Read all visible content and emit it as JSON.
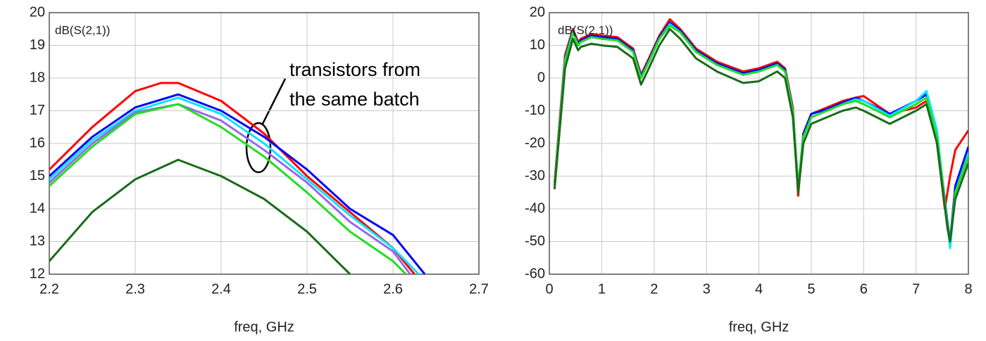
{
  "chart_data": [
    {
      "type": "line",
      "label": "dB(S(2,1))",
      "xlabel": "freq, GHz",
      "xlim": [
        2.2,
        2.7
      ],
      "ylim": [
        12,
        20
      ],
      "xticks": [
        2.2,
        2.3,
        2.4,
        2.5,
        2.6,
        2.7
      ],
      "yticks": [
        12,
        13,
        14,
        15,
        16,
        17,
        18,
        19,
        20
      ],
      "grid": true,
      "annotation": [
        "transistors from",
        "the same batch"
      ],
      "series": [
        {
          "color": "#ff0000",
          "x": [
            2.2,
            2.25,
            2.3,
            2.33,
            2.35,
            2.4,
            2.45,
            2.5,
            2.55,
            2.6,
            2.625
          ],
          "values": [
            15.2,
            16.5,
            17.6,
            17.85,
            17.85,
            17.3,
            16.3,
            15.0,
            13.9,
            12.8,
            12.0
          ]
        },
        {
          "color": "#0000ff",
          "x": [
            2.2,
            2.25,
            2.3,
            2.35,
            2.4,
            2.45,
            2.5,
            2.55,
            2.6,
            2.637
          ],
          "values": [
            15.0,
            16.2,
            17.1,
            17.5,
            17.0,
            16.2,
            15.2,
            14.0,
            13.2,
            12.0
          ]
        },
        {
          "color": "#00e5ff",
          "x": [
            2.2,
            2.25,
            2.3,
            2.35,
            2.4,
            2.45,
            2.5,
            2.55,
            2.6,
            2.63
          ],
          "values": [
            14.9,
            16.1,
            17.0,
            17.4,
            16.9,
            16.0,
            14.9,
            13.8,
            12.8,
            12.0
          ]
        },
        {
          "color": "#9966ee",
          "x": [
            2.2,
            2.25,
            2.3,
            2.35,
            2.4,
            2.45,
            2.5,
            2.55,
            2.6,
            2.62
          ],
          "values": [
            14.8,
            16.0,
            16.95,
            17.2,
            16.7,
            15.8,
            14.8,
            13.6,
            12.7,
            12.0
          ]
        },
        {
          "color": "#22dd22",
          "x": [
            2.2,
            2.25,
            2.3,
            2.35,
            2.4,
            2.45,
            2.5,
            2.55,
            2.6,
            2.615
          ],
          "values": [
            14.7,
            15.9,
            16.9,
            17.2,
            16.5,
            15.6,
            14.5,
            13.3,
            12.4,
            12.0
          ]
        },
        {
          "color": "#1a6b1a",
          "x": [
            2.2,
            2.25,
            2.3,
            2.35,
            2.4,
            2.45,
            2.5,
            2.55
          ],
          "values": [
            12.4,
            13.9,
            14.9,
            15.5,
            15.0,
            14.3,
            13.3,
            12.0
          ]
        }
      ]
    },
    {
      "type": "line",
      "label": "dB(S(2,1))",
      "xlabel": "freq, GHz",
      "xlim": [
        0,
        8
      ],
      "ylim": [
        -60,
        20
      ],
      "xticks": [
        0,
        1,
        2,
        3,
        4,
        5,
        6,
        7,
        8
      ],
      "yticks": [
        -60,
        -50,
        -40,
        -30,
        -20,
        -10,
        0,
        10,
        20
      ],
      "grid": true,
      "series": [
        {
          "color": "#ff0000",
          "x": [
            0.1,
            0.3,
            0.45,
            0.55,
            0.6,
            0.8,
            1.0,
            1.3,
            1.6,
            1.75,
            1.9,
            2.1,
            2.3,
            2.5,
            2.8,
            3.2,
            3.7,
            4.0,
            4.35,
            4.5,
            4.65,
            4.75,
            4.85,
            5.0,
            5.3,
            5.6,
            5.85,
            6.0,
            6.5,
            7.0,
            7.2,
            7.4,
            7.55,
            7.65,
            7.75,
            8.0
          ],
          "values": [
            -32,
            7,
            15,
            11,
            12,
            13.5,
            13,
            12.5,
            9,
            1,
            6,
            13,
            18,
            15,
            9,
            5,
            2,
            3,
            5,
            3,
            -9,
            -36,
            -17,
            -11,
            -9,
            -7,
            -6,
            -5.5,
            -11,
            -9,
            -7,
            -20,
            -40,
            -30,
            -22,
            -16
          ]
        },
        {
          "color": "#0000ff",
          "x": [
            0.1,
            0.3,
            0.45,
            0.55,
            0.6,
            0.8,
            1.0,
            1.3,
            1.6,
            1.75,
            1.9,
            2.1,
            2.3,
            2.5,
            2.8,
            3.2,
            3.7,
            4.0,
            4.35,
            4.5,
            4.65,
            4.75,
            4.85,
            5.0,
            5.3,
            5.6,
            5.85,
            6.0,
            6.5,
            7.0,
            7.2,
            7.4,
            7.6,
            7.65,
            7.75,
            8.0
          ],
          "values": [
            -33,
            6,
            14.5,
            10.5,
            11.5,
            13,
            12.5,
            12,
            8.5,
            0.5,
            5.5,
            12.5,
            17,
            14.5,
            8.5,
            4.5,
            1.5,
            2.5,
            4.5,
            2.5,
            -9.5,
            -34,
            -17,
            -11,
            -9.5,
            -7.5,
            -6,
            -7,
            -11,
            -7,
            -5,
            -17,
            -44,
            -50,
            -33,
            -21
          ]
        },
        {
          "color": "#00e5ff",
          "x": [
            0.1,
            0.3,
            0.45,
            0.55,
            0.6,
            0.8,
            1.0,
            1.3,
            1.6,
            1.75,
            1.9,
            2.1,
            2.3,
            2.5,
            2.8,
            3.2,
            3.7,
            4.0,
            4.35,
            4.5,
            4.65,
            4.75,
            4.85,
            5.0,
            5.3,
            5.6,
            5.85,
            6.0,
            6.5,
            7.0,
            7.2,
            7.4,
            7.6,
            7.65,
            7.75,
            8.0
          ],
          "values": [
            -33,
            5.5,
            14,
            10,
            11,
            12.5,
            12,
            11.5,
            8,
            0,
            5,
            12,
            16.5,
            14,
            8,
            4,
            1,
            2,
            4,
            2,
            -10,
            -33,
            -18,
            -12,
            -10,
            -8,
            -6.5,
            -7,
            -11.5,
            -7,
            -4,
            -16,
            -45,
            -52,
            -35,
            -23
          ]
        },
        {
          "color": "#22dd22",
          "x": [
            0.1,
            0.3,
            0.45,
            0.55,
            0.6,
            0.8,
            1.0,
            1.3,
            1.6,
            1.75,
            1.9,
            2.1,
            2.3,
            2.5,
            2.8,
            3.2,
            3.7,
            4.0,
            4.35,
            4.5,
            4.65,
            4.75,
            4.85,
            5.0,
            5.3,
            5.6,
            5.85,
            6.0,
            6.5,
            7.0,
            7.2,
            7.4,
            7.6,
            7.65,
            7.75,
            8.0
          ],
          "values": [
            -33,
            5,
            14,
            10,
            11,
            12.5,
            12,
            11.5,
            8,
            0,
            5,
            12,
            16,
            14,
            8,
            4,
            1,
            2,
            4,
            2,
            -10,
            -33,
            -18,
            -12,
            -10,
            -8,
            -7,
            -8,
            -12,
            -8,
            -6,
            -18,
            -45,
            -50,
            -35,
            -24
          ]
        },
        {
          "color": "#1a6b1a",
          "x": [
            0.1,
            0.3,
            0.45,
            0.55,
            0.6,
            0.8,
            1.0,
            1.3,
            1.6,
            1.75,
            1.9,
            2.1,
            2.3,
            2.5,
            2.8,
            3.2,
            3.7,
            4.0,
            4.35,
            4.5,
            4.65,
            4.75,
            4.85,
            5.0,
            5.3,
            5.6,
            5.85,
            6.0,
            6.5,
            7.0,
            7.2,
            7.4,
            7.6,
            7.65,
            7.75,
            8.0
          ],
          "values": [
            -34,
            3,
            12,
            8.5,
            9.5,
            10.5,
            10,
            9.5,
            6,
            -2,
            3,
            10,
            15,
            12,
            6,
            2,
            -1.5,
            -1,
            2,
            0,
            -12,
            -35,
            -20,
            -14,
            -12,
            -10,
            -9,
            -10,
            -14,
            -10,
            -8,
            -20,
            -46,
            -50,
            -37,
            -26
          ]
        }
      ]
    }
  ]
}
